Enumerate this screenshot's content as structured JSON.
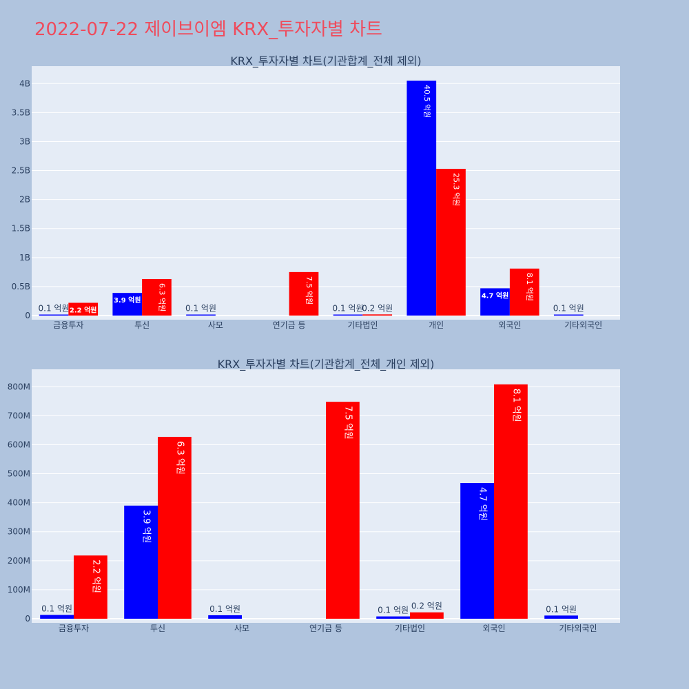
{
  "page": {
    "title": "2022-07-22 제이브이엠 KRX_투자자별 차트"
  },
  "colors": {
    "buy": "#0000ff",
    "sell": "#ff0000",
    "background": "#b0c4de",
    "plot_bg": "#e5ecf6",
    "title": "#ef4b5c"
  },
  "chart_data": [
    {
      "type": "bar",
      "title": "KRX_투자자별 차트(기관합계_전체 제외)",
      "categories": [
        "금융투자",
        "투신",
        "사모",
        "연기금 등",
        "기타법인",
        "개인",
        "외국인",
        "기타외국인"
      ],
      "series": [
        {
          "color": "#0000ff",
          "values": [
            10000000,
            390000000,
            10000000,
            0,
            10000000,
            4050000000,
            470000000,
            10000000
          ],
          "labels": [
            "0.1 억원",
            "3.9 억원",
            "0.1 억원",
            "",
            "0.1 억원",
            "40.5 억원",
            "4.7 억원",
            "0.1 억원"
          ]
        },
        {
          "color": "#ff0000",
          "values": [
            220000000,
            630000000,
            0,
            750000000,
            20000000,
            2530000000,
            810000000,
            0
          ],
          "labels": [
            "2.2 억원",
            "6.3 억원",
            "",
            "7.5 억원",
            "0.2 억원",
            "25.3 억원",
            "8.1 억원",
            ""
          ]
        }
      ],
      "ylim": [
        0,
        4300000000
      ],
      "yticks": [
        0,
        500000000,
        1000000000,
        1500000000,
        2000000000,
        2500000000,
        3000000000,
        3500000000,
        4000000000
      ],
      "ytick_labels": [
        "0",
        "0.5B",
        "1B",
        "1.5B",
        "2B",
        "2.5B",
        "3B",
        "3.5B",
        "4B"
      ],
      "grid": true
    },
    {
      "type": "bar",
      "title": "KRX_투자자별 차트(기관합계_전체_개인 제외)",
      "categories": [
        "금융투자",
        "투신",
        "사모",
        "연기금 등",
        "기타법인",
        "외국인",
        "기타외국인"
      ],
      "series": [
        {
          "color": "#0000ff",
          "values": [
            13000000,
            390000000,
            12000000,
            0,
            8000000,
            468000000,
            11000000
          ],
          "labels": [
            "0.1 억원",
            "3.9 억원",
            "0.1 억원",
            "",
            "0.1 억원",
            "4.7 억원",
            "0.1 억원"
          ]
        },
        {
          "color": "#ff0000",
          "values": [
            218000000,
            627000000,
            0,
            748000000,
            22000000,
            808000000,
            0
          ],
          "labels": [
            "2.2 억원",
            "6.3 억원",
            "",
            "7.5 억원",
            "0.2 억원",
            "8.1 억원",
            ""
          ]
        }
      ],
      "ylim": [
        0,
        860000000
      ],
      "yticks": [
        0,
        100000000,
        200000000,
        300000000,
        400000000,
        500000000,
        600000000,
        700000000,
        800000000
      ],
      "ytick_labels": [
        "0",
        "100M",
        "200M",
        "300M",
        "400M",
        "500M",
        "600M",
        "700M",
        "800M"
      ],
      "grid": true
    }
  ]
}
